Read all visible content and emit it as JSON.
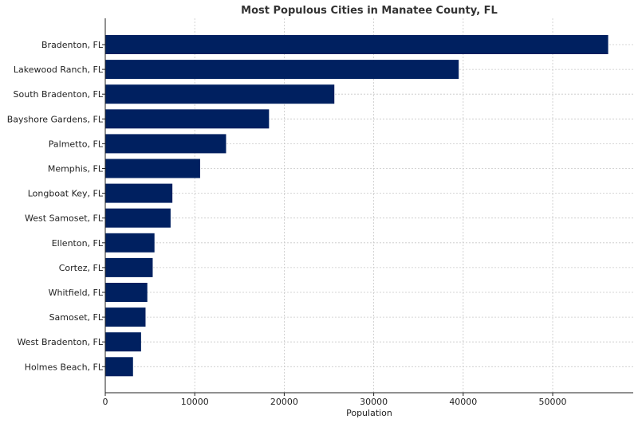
{
  "chart_data": {
    "type": "bar",
    "orientation": "horizontal",
    "title": "Most Populous Cities in Manatee County, FL",
    "xlabel": "Population",
    "ylabel": "",
    "xlim": [
      0,
      59000
    ],
    "xticks": [
      0,
      10000,
      20000,
      30000,
      40000,
      50000
    ],
    "grid": true,
    "categories": [
      "Bradenton, FL",
      "Lakewood Ranch, FL",
      "South Bradenton, FL",
      "Bayshore Gardens, FL",
      "Palmetto, FL",
      "Memphis, FL",
      "Longboat Key, FL",
      "West Samoset, FL",
      "Ellenton, FL",
      "Cortez, FL",
      "Whitfield, FL",
      "Samoset, FL",
      "West Bradenton, FL",
      "Holmes Beach, FL"
    ],
    "values": [
      56200,
      39500,
      25600,
      18300,
      13500,
      10600,
      7500,
      7300,
      5500,
      5300,
      4700,
      4500,
      4000,
      3100
    ],
    "bar_color": "#002060"
  }
}
